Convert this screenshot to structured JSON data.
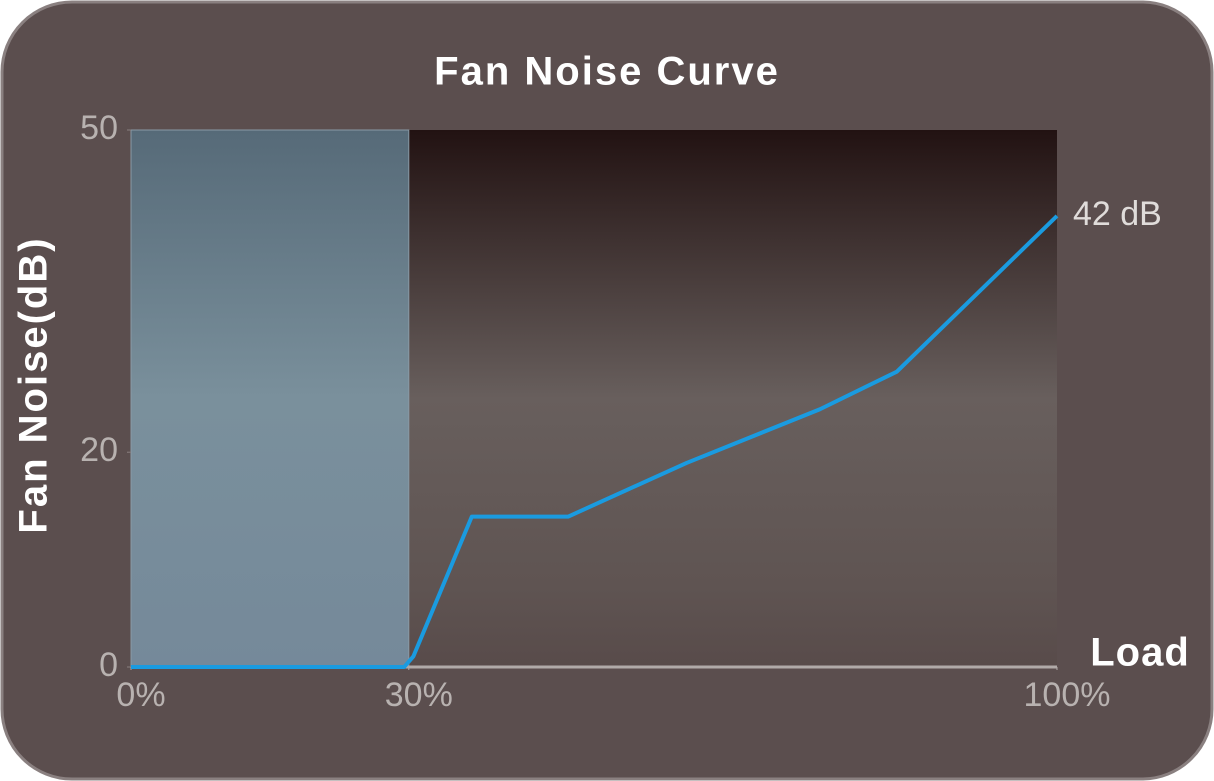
{
  "chart_data": {
    "type": "line",
    "title": "Fan Noise Curve",
    "x_label": "Load",
    "y_label": "Fan Noise(dB)",
    "x": [
      0,
      29.5,
      30.5,
      36.8,
      47.2,
      60,
      74.4,
      82.7,
      100
    ],
    "values": [
      0,
      0,
      1,
      14,
      14,
      19,
      24,
      27.5,
      42
    ],
    "color": "#1a9be0",
    "annotation": "42 dB",
    "highlight_xrange": [
      0,
      30
    ],
    "xlim": [
      0,
      100
    ],
    "xticks": [
      {
        "value": 0,
        "label": "0%"
      },
      {
        "value": 30,
        "label": "30%"
      },
      {
        "value": 100,
        "label": "100%"
      }
    ],
    "ylim": [
      0,
      50
    ],
    "yticks": [
      0,
      20,
      50
    ]
  }
}
